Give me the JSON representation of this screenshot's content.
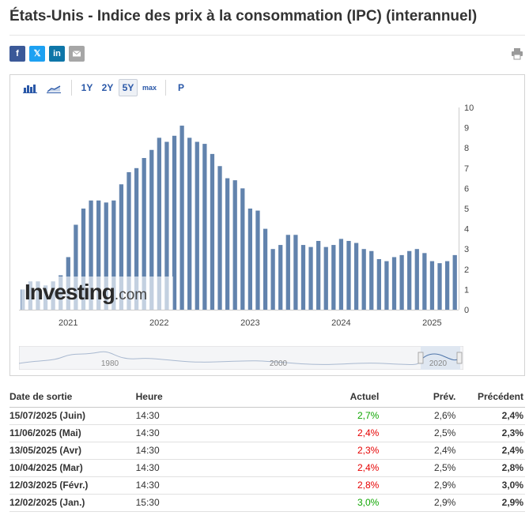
{
  "title": "États-Unis - Indice des prix à la consommation (IPC) (interannuel)",
  "share": {
    "facebook": "f",
    "twitter": "𝕏",
    "linkedin": "in",
    "email_icon": "envelope-icon",
    "print_icon": "printer-icon"
  },
  "toolbar": {
    "range_1y": "1Y",
    "range_2y": "2Y",
    "range_5y": "5Y",
    "range_max": "max",
    "p_button": "P",
    "selected": "5Y"
  },
  "watermark": {
    "brand": "Investing",
    "suffix": ".com"
  },
  "colors": {
    "bar": "#6283ad",
    "up": "#0ea600",
    "down": "#e60000",
    "link": "#2a58a8"
  },
  "chart_data": {
    "type": "bar",
    "title": "",
    "ylim": [
      0,
      10
    ],
    "yticks": [
      "0",
      "1",
      "2",
      "3",
      "4",
      "5",
      "6",
      "7",
      "8",
      "9",
      "10"
    ],
    "x_labels": [
      {
        "label": "2021",
        "index": 6
      },
      {
        "label": "2022",
        "index": 18
      },
      {
        "label": "2023",
        "index": 30
      },
      {
        "label": "2024",
        "index": 42
      },
      {
        "label": "2025",
        "index": 54
      }
    ],
    "values": [
      1.0,
      1.4,
      1.4,
      1.2,
      1.4,
      1.7,
      2.6,
      4.2,
      5.0,
      5.4,
      5.4,
      5.3,
      5.4,
      6.2,
      6.8,
      7.0,
      7.5,
      7.9,
      8.5,
      8.3,
      8.6,
      9.1,
      8.5,
      8.3,
      8.2,
      7.7,
      7.1,
      6.5,
      6.4,
      6.0,
      5.0,
      4.9,
      4.0,
      3.0,
      3.2,
      3.7,
      3.7,
      3.2,
      3.1,
      3.4,
      3.1,
      3.2,
      3.5,
      3.4,
      3.3,
      3.0,
      2.9,
      2.5,
      2.4,
      2.6,
      2.7,
      2.9,
      3.0,
      2.8,
      2.4,
      2.3,
      2.4,
      2.7
    ],
    "navigator_labels": [
      "1980",
      "2000",
      "2020"
    ]
  },
  "table": {
    "headers": {
      "date": "Date de sortie",
      "time": "Heure",
      "actual": "Actuel",
      "forecast": "Prév.",
      "previous": "Précédent"
    },
    "rows": [
      {
        "date": "15/07/2025 (Juin)",
        "time": "14:30",
        "actual": "2,7%",
        "forecast": "2,6%",
        "previous": "2,4%",
        "dir": "up"
      },
      {
        "date": "11/06/2025 (Mai)",
        "time": "14:30",
        "actual": "2,4%",
        "forecast": "2,5%",
        "previous": "2,3%",
        "dir": "down"
      },
      {
        "date": "13/05/2025 (Avr)",
        "time": "14:30",
        "actual": "2,3%",
        "forecast": "2,4%",
        "previous": "2,4%",
        "dir": "down"
      },
      {
        "date": "10/04/2025 (Mar)",
        "time": "14:30",
        "actual": "2,4%",
        "forecast": "2,5%",
        "previous": "2,8%",
        "dir": "down"
      },
      {
        "date": "12/03/2025 (Févr.)",
        "time": "14:30",
        "actual": "2,8%",
        "forecast": "2,9%",
        "previous": "3,0%",
        "dir": "down"
      },
      {
        "date": "12/02/2025 (Jan.)",
        "time": "15:30",
        "actual": "3,0%",
        "forecast": "2,9%",
        "previous": "2,9%",
        "dir": "up"
      }
    ]
  }
}
